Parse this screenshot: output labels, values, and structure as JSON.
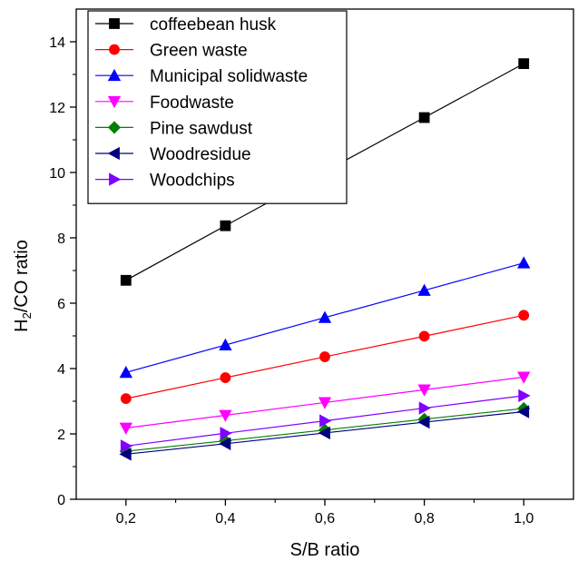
{
  "chart_data": {
    "type": "line",
    "xlabel": "S/B ratio",
    "ylabel_parts": [
      "H",
      "2",
      "/CO ratio"
    ],
    "x": [
      0.2,
      0.4,
      0.6,
      0.8,
      1.0
    ],
    "x_tick_labels": [
      "0,2",
      "0,4",
      "0,6",
      "0,8",
      "1,0"
    ],
    "y_ticks": [
      0,
      2,
      4,
      6,
      8,
      10,
      12,
      14
    ],
    "y_tick_labels": [
      "0",
      "2",
      "4",
      "6",
      "8",
      "10",
      "12",
      "14"
    ],
    "xlim": [
      0.1,
      1.1
    ],
    "ylim": [
      0,
      15
    ],
    "grid": false,
    "legend_position": "top-left",
    "series": [
      {
        "name": "coffeebean husk",
        "color": "#000000",
        "marker": "square",
        "values": [
          6.7,
          8.37,
          10.03,
          11.68,
          13.33
        ]
      },
      {
        "name": "Green waste",
        "color": "#ff0000",
        "marker": "circle",
        "values": [
          3.08,
          3.72,
          4.36,
          4.99,
          5.63
        ]
      },
      {
        "name": "Municipal solidwaste",
        "color": "#0000ff",
        "marker": "triangle-up",
        "values": [
          3.88,
          4.72,
          5.56,
          6.39,
          7.23
        ]
      },
      {
        "name": "Foodwaste",
        "color": "#ff00ff",
        "marker": "triangle-down",
        "values": [
          2.18,
          2.57,
          2.96,
          3.35,
          3.74
        ]
      },
      {
        "name": "Pine sawdust",
        "color": "#008000",
        "marker": "diamond",
        "values": [
          1.47,
          1.79,
          2.12,
          2.45,
          2.78
        ]
      },
      {
        "name": "Woodresidue",
        "color": "#000080",
        "marker": "triangle-left",
        "values": [
          1.38,
          1.7,
          2.03,
          2.36,
          2.68
        ]
      },
      {
        "name": "Woodchips",
        "color": "#8000ff",
        "marker": "triangle-right",
        "values": [
          1.63,
          2.02,
          2.4,
          2.79,
          3.17
        ]
      }
    ]
  }
}
